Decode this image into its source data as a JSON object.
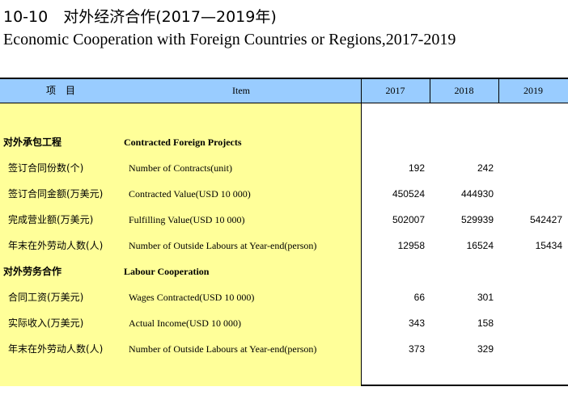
{
  "title": {
    "chinese": "10-10　对外经济合作(2017—2019年)",
    "english": "Economic Cooperation with Foreign Countries or Regions,2017-2019"
  },
  "header": {
    "item_cn": "项　目",
    "item_en": "Item",
    "years": [
      "2017",
      "2018",
      "2019"
    ]
  },
  "rows": [
    {
      "cn": "对外承包工程",
      "en": "Contracted Foreign Projects",
      "section": true,
      "values": [
        "",
        "",
        ""
      ]
    },
    {
      "cn": "签订合同份数(个)",
      "en": "Number of Contracts(unit)",
      "section": false,
      "values": [
        "192",
        "242",
        ""
      ]
    },
    {
      "cn": "签订合同金额(万美元)",
      "en": "Contracted Value(USD 10 000)",
      "section": false,
      "values": [
        "450524",
        "444930",
        ""
      ]
    },
    {
      "cn": "完成营业额(万美元)",
      "en": "Fulfilling Value(USD 10 000)",
      "section": false,
      "values": [
        "502007",
        "529939",
        "542427"
      ]
    },
    {
      "cn": "年末在外劳动人数(人)",
      "en": "Number of Outside Labours at Year-end(person)",
      "section": false,
      "values": [
        "12958",
        "16524",
        "15434"
      ]
    },
    {
      "cn": "对外劳务合作",
      "en": "Labour Cooperation",
      "section": true,
      "values": [
        "",
        "",
        ""
      ]
    },
    {
      "cn": "合同工资(万美元)",
      "en": "Wages Contracted(USD 10 000)",
      "section": false,
      "values": [
        "66",
        "301",
        ""
      ]
    },
    {
      "cn": "实际收入(万美元)",
      "en": "Actual Income(USD 10 000)",
      "section": false,
      "values": [
        "343",
        "158",
        ""
      ]
    },
    {
      "cn": "年末在外劳动人数(人)",
      "en": "Number of Outside Labours at Year-end(person)",
      "section": false,
      "values": [
        "373",
        "329",
        ""
      ]
    }
  ],
  "colors": {
    "header_bg": "#99ccff",
    "item_column_bg": "#ffff99"
  }
}
